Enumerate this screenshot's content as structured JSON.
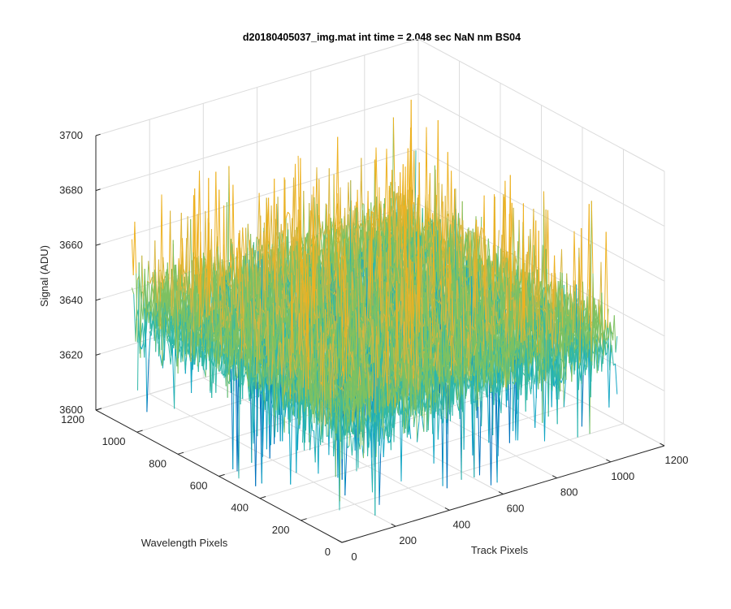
{
  "chart_data": {
    "type": "surface",
    "title": "d20180405037_img.mat int time = 2.048 sec  NaN nm BS04",
    "xlabel": "Track Pixels",
    "ylabel": "Wavelength Pixels",
    "zlabel": "Signal (ADU)",
    "xlim": [
      0,
      1200
    ],
    "ylim": [
      0,
      1200
    ],
    "zlim": [
      3600,
      3700
    ],
    "x_ticks": [
      "0",
      "200",
      "400",
      "600",
      "800",
      "1000",
      "1200"
    ],
    "y_ticks": [
      "0",
      "200",
      "400",
      "600",
      "800",
      "1000",
      "1200"
    ],
    "z_ticks": [
      "3600",
      "3620",
      "3640",
      "3660",
      "3680",
      "3700"
    ],
    "grid": true,
    "data_extent": {
      "x": [
        0,
        1024
      ],
      "y": [
        0,
        1024
      ]
    },
    "signal_mean": 3645,
    "signal_range": [
      3600,
      3700
    ],
    "colormap": [
      "#0072bd",
      "#12a6c4",
      "#31b8a8",
      "#7ec161",
      "#d9b640",
      "#edb120"
    ]
  }
}
